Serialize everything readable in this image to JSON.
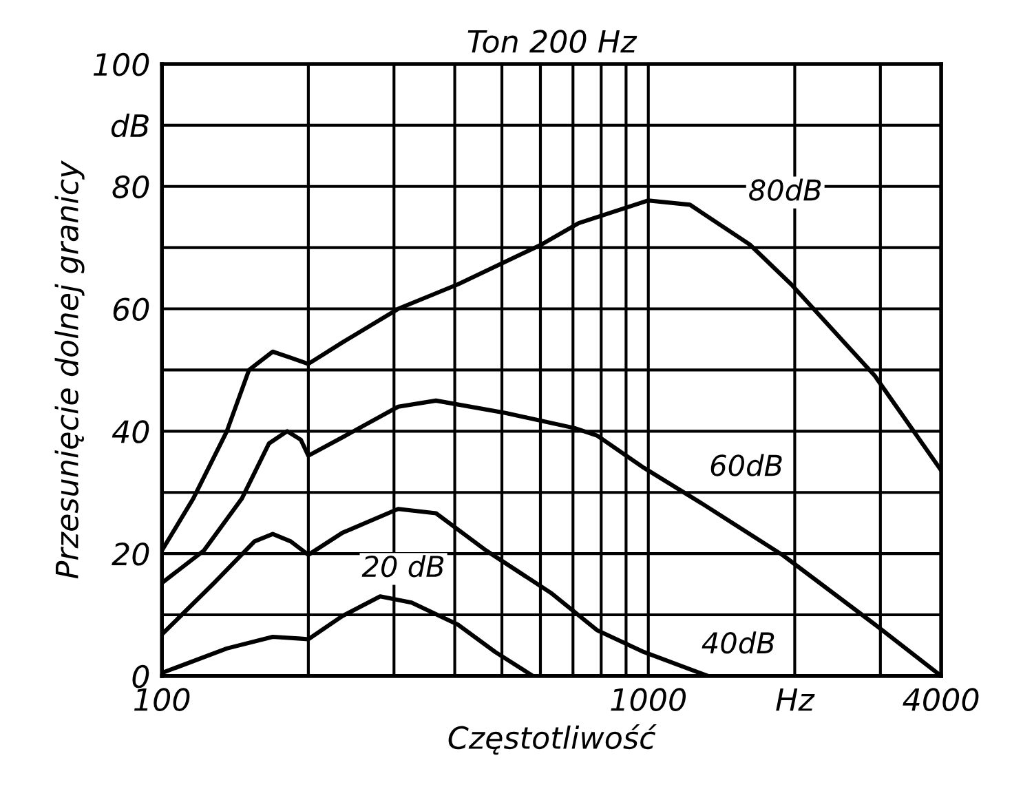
{
  "chart_data": {
    "type": "line",
    "title": "Ton 200 Hz",
    "xlabel": "Częstotliwość",
    "ylabel": "Przesunięcie dolnej granicy",
    "log": "x",
    "grid": true,
    "marker": "none",
    "line_style": "solid",
    "xlim": [
      100,
      4000
    ],
    "ylim": [
      0,
      100
    ],
    "xticks": [
      100,
      {
        "value": 200,
        "label": null
      },
      {
        "value": 300,
        "label": null
      },
      {
        "value": 400,
        "label": null
      },
      {
        "value": 500,
        "label": null
      },
      {
        "value": 600,
        "label": null
      },
      {
        "value": 700,
        "label": null
      },
      {
        "value": 800,
        "label": null
      },
      {
        "value": 900,
        "label": null
      },
      1000,
      {
        "value": 2000,
        "label": "Hz"
      },
      {
        "value": 3000,
        "label": null
      },
      4000
    ],
    "yticks": [
      0,
      {
        "value": 10,
        "label": null
      },
      20,
      {
        "value": 30,
        "label": null
      },
      40,
      {
        "value": 50,
        "label": null
      },
      60,
      {
        "value": 70,
        "label": null
      },
      80,
      {
        "value": 90,
        "label": "dB"
      },
      100
    ],
    "series": [
      {
        "name": "80dB",
        "color": "#000000",
        "x": [
          100,
          116,
          136,
          151,
          169,
          184,
          200,
          235,
          306,
          406,
          603,
          719,
          1000,
          1218,
          1617,
          1967,
          2925,
          4000
        ],
        "values": [
          20.5,
          29,
          40,
          50,
          53,
          52,
          51,
          54.5,
          60,
          64,
          70.5,
          74,
          77.7,
          77,
          70.5,
          64,
          49,
          33.6
        ]
      },
      {
        "name": "60dB",
        "color": "#000000",
        "x": [
          100,
          122,
          146,
          166,
          181,
          193,
          200,
          235,
          306,
          366,
          508,
          706,
          784,
          980,
          1300,
          1893,
          2925,
          4000
        ],
        "values": [
          15.2,
          20.5,
          29,
          38,
          40,
          38.6,
          36,
          39,
          44,
          45,
          43,
          40.5,
          39.3,
          34,
          28,
          19.7,
          8.4,
          0
        ]
      },
      {
        "name": "40dB",
        "color": "#000000",
        "x": [
          100,
          128,
          155,
          169,
          184,
          200,
          235,
          306,
          366,
          464,
          630,
          784,
          980,
          1326
        ],
        "values": [
          6.8,
          15.2,
          22,
          23.2,
          22,
          19.8,
          23.4,
          27.3,
          26.6,
          20.5,
          13.6,
          7.5,
          3.9,
          0
        ]
      },
      {
        "name": "20 dB",
        "color": "#000000",
        "x": [
          100,
          136,
          169,
          193,
          200,
          235,
          281,
          326,
          406,
          485,
          579
        ],
        "values": [
          0.5,
          4.5,
          6.4,
          6.1,
          6,
          9.8,
          13,
          12,
          8.4,
          3.9,
          0
        ]
      }
    ]
  }
}
